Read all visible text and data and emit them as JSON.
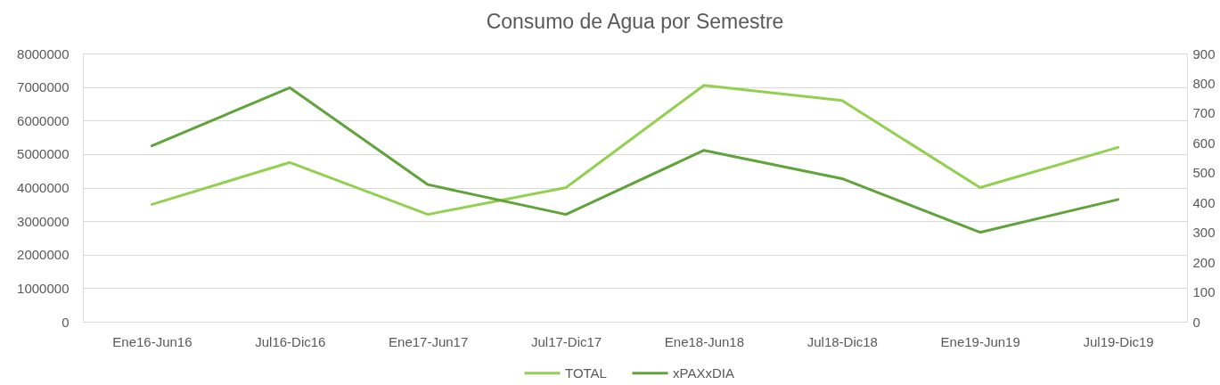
{
  "chart_data": {
    "type": "line",
    "title": "Consumo de Agua por Semestre",
    "categories": [
      "Ene16-Jun16",
      "Jul16-Dic16",
      "Ene17-Jun17",
      "Jul17-Dic17",
      "Ene18-Jun18",
      "Jul18-Dic18",
      "Ene19-Jun19",
      "Jul19-Dic19"
    ],
    "series": [
      {
        "name": "TOTAL",
        "color": "#92d050",
        "values": [
          3500000,
          4750000,
          3200000,
          4000000,
          7050000,
          6600000,
          4000000,
          5200000
        ]
      },
      {
        "name": "xPAXxDIA",
        "color": "#5fa33a",
        "axis": "y2",
        "values": [
          590,
          785,
          460,
          360,
          575,
          480,
          300,
          410
        ]
      }
    ],
    "ylim": [
      0,
      8000000
    ],
    "yticks": [
      0,
      1000000,
      2000000,
      3000000,
      4000000,
      5000000,
      6000000,
      7000000,
      8000000
    ],
    "y2lim": [
      0,
      900
    ],
    "y2ticks": [
      0,
      100,
      200,
      300,
      400,
      500,
      600,
      700,
      800,
      900
    ],
    "grid": "y",
    "legend": "bottom",
    "line_style": "solid"
  }
}
